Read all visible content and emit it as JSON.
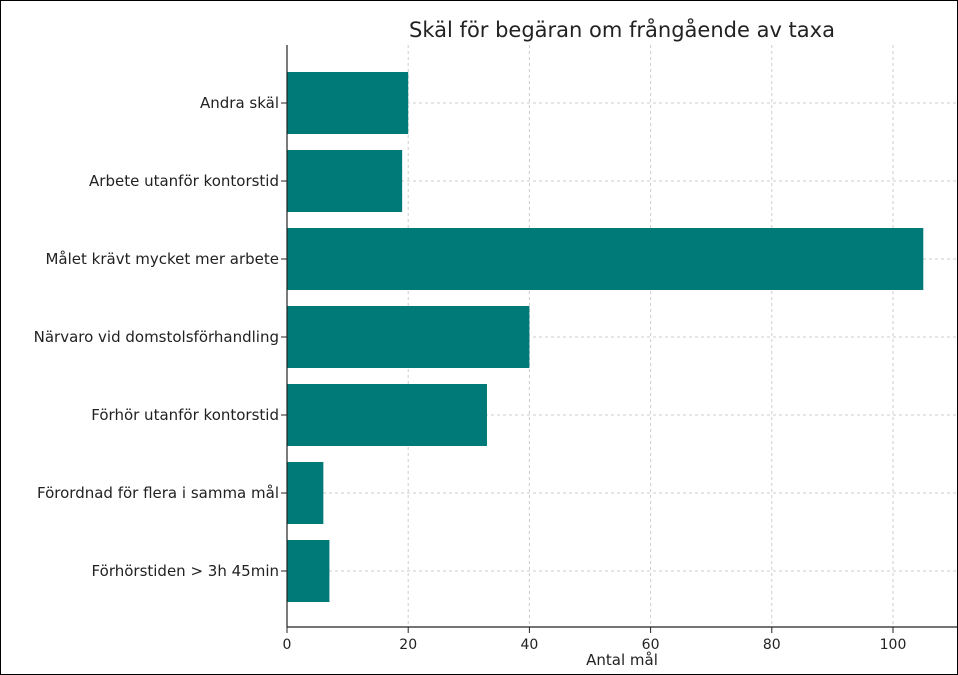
{
  "chart_data": {
    "type": "bar",
    "orientation": "horizontal",
    "title": "Skäl för begäran om frångående av taxa",
    "xlabel": "Antal mål",
    "ylabel": "",
    "categories": [
      "Andra skäl",
      "Arbete utanför kontorstid",
      "Målet krävt mycket mer arbete",
      "Närvaro vid domstolsförhandling",
      "Förhör utanför kontorstid",
      "Förordnad för flera i samma mål",
      "Förhörstiden > 3h 45min"
    ],
    "values": [
      20,
      19,
      105,
      40,
      33,
      6,
      7
    ],
    "xlim": [
      0,
      110
    ],
    "xticks": [
      "0",
      "20",
      "40",
      "60",
      "80",
      "100"
    ],
    "grid": true,
    "bar_color": "#007a78"
  }
}
